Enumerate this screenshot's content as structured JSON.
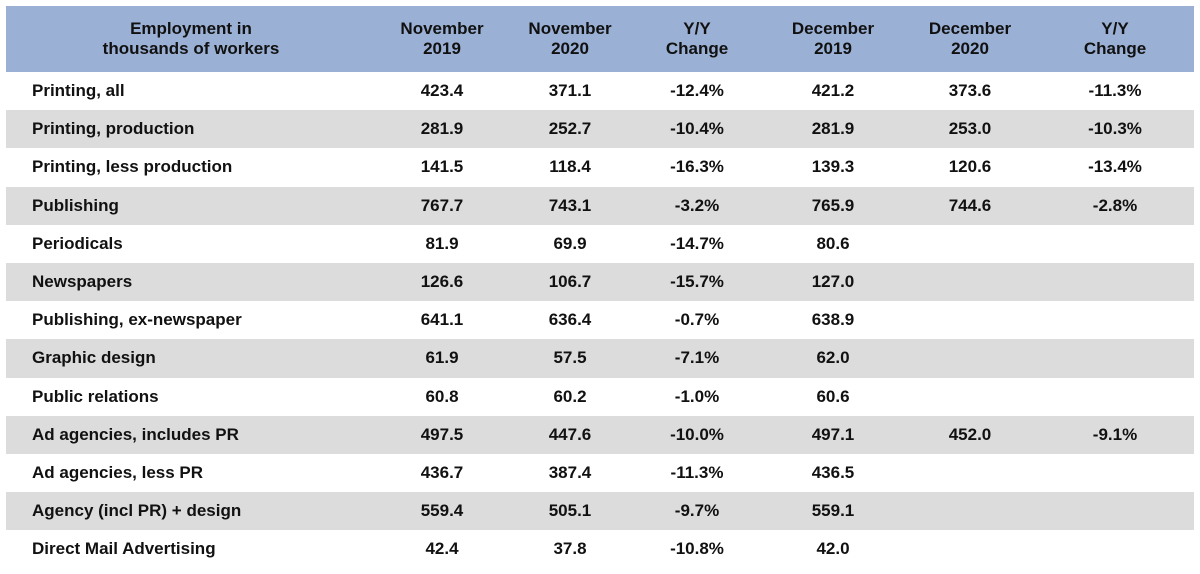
{
  "table": {
    "header": {
      "label_line1": "Employment in",
      "label_line2": "thousands of workers",
      "columns": [
        {
          "line1": "November",
          "line2": "2019"
        },
        {
          "line1": "November",
          "line2": "2020"
        },
        {
          "line1": "Y/Y",
          "line2": "Change"
        },
        {
          "line1": "December",
          "line2": "2019"
        },
        {
          "line1": "December",
          "line2": "2020"
        },
        {
          "line1": "Y/Y",
          "line2": "Change"
        }
      ]
    },
    "rows": [
      {
        "label": "Printing, all",
        "values": [
          "423.4",
          "371.1",
          "-12.4%",
          "421.2",
          "373.6",
          "-11.3%"
        ]
      },
      {
        "label": "Printing, production",
        "values": [
          "281.9",
          "252.7",
          "-10.4%",
          "281.9",
          "253.0",
          "-10.3%"
        ]
      },
      {
        "label": "Printing, less production",
        "values": [
          "141.5",
          "118.4",
          "-16.3%",
          "139.3",
          "120.6",
          "-13.4%"
        ]
      },
      {
        "label": "Publishing",
        "values": [
          "767.7",
          "743.1",
          "-3.2%",
          "765.9",
          "744.6",
          "-2.8%"
        ]
      },
      {
        "label": "Periodicals",
        "values": [
          "81.9",
          "69.9",
          "-14.7%",
          "80.6",
          "",
          ""
        ]
      },
      {
        "label": "Newspapers",
        "values": [
          "126.6",
          "106.7",
          "-15.7%",
          "127.0",
          "",
          ""
        ]
      },
      {
        "label": "Publishing, ex-newspaper",
        "values": [
          "641.1",
          "636.4",
          "-0.7%",
          "638.9",
          "",
          ""
        ]
      },
      {
        "label": "Graphic design",
        "values": [
          "61.9",
          "57.5",
          "-7.1%",
          "62.0",
          "",
          ""
        ]
      },
      {
        "label": "Public relations",
        "values": [
          "60.8",
          "60.2",
          "-1.0%",
          "60.6",
          "",
          ""
        ]
      },
      {
        "label": "Ad agencies, includes PR",
        "values": [
          "497.5",
          "447.6",
          "-10.0%",
          "497.1",
          "452.0",
          "-9.1%"
        ]
      },
      {
        "label": "Ad agencies, less PR",
        "values": [
          "436.7",
          "387.4",
          "-11.3%",
          "436.5",
          "",
          ""
        ]
      },
      {
        "label": "Agency (incl PR) + design",
        "values": [
          "559.4",
          "505.1",
          "-9.7%",
          "559.1",
          "",
          ""
        ]
      },
      {
        "label": "Direct Mail Advertising",
        "values": [
          "42.4",
          "37.8",
          "-10.8%",
          "42.0",
          "",
          ""
        ]
      }
    ]
  },
  "colors": {
    "header_bg": "#9ab0d5",
    "stripe_bg": "#dcdcdc",
    "row_bg": "#ffffff"
  }
}
